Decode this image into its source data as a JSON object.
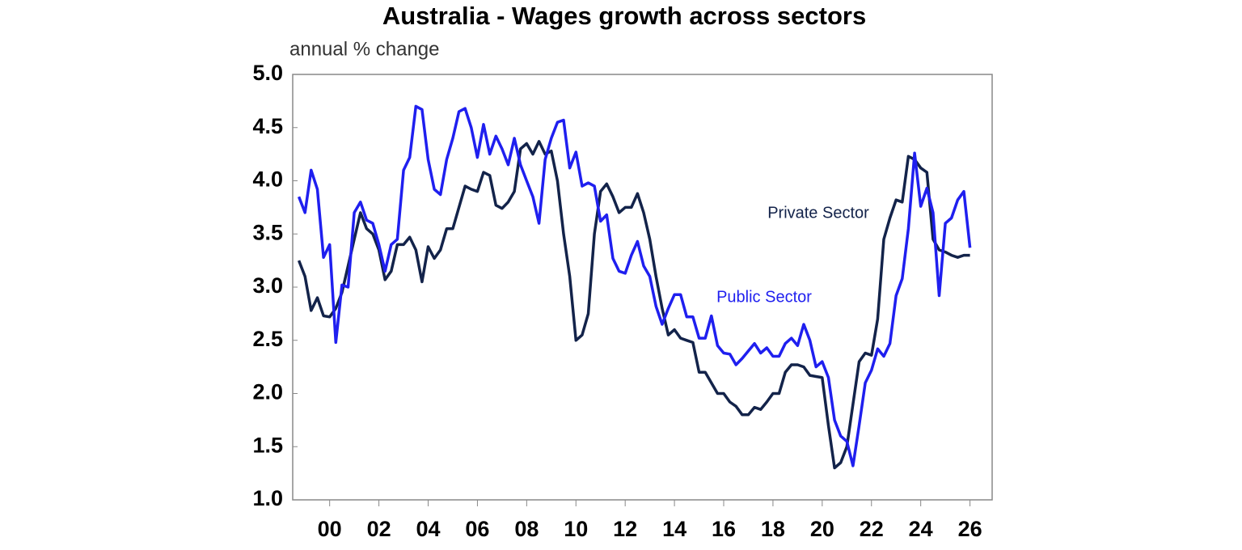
{
  "chart_data": {
    "type": "line",
    "title": "Australia - Wages growth across sectors",
    "subtitle": "annual % change",
    "x": [
      -1.25,
      -1,
      -0.75,
      -0.5,
      -0.25,
      0,
      0.25,
      0.5,
      0.75,
      1,
      1.25,
      1.5,
      1.75,
      2,
      2.25,
      2.5,
      2.75,
      3,
      3.25,
      3.5,
      3.75,
      4,
      4.25,
      4.5,
      4.75,
      5,
      5.25,
      5.5,
      5.75,
      6,
      6.25,
      6.5,
      6.75,
      7,
      7.25,
      7.5,
      7.75,
      8,
      8.25,
      8.5,
      8.75,
      9,
      9.25,
      9.5,
      9.75,
      10,
      10.25,
      10.5,
      10.75,
      11,
      11.25,
      11.5,
      11.75,
      12,
      12.25,
      12.5,
      12.75,
      13,
      13.25,
      13.5,
      13.75,
      14,
      14.25,
      14.5,
      14.75,
      15,
      15.25,
      15.5,
      15.75,
      16,
      16.25,
      16.5,
      16.75,
      17,
      17.25,
      17.5,
      17.75,
      18,
      18.25,
      18.5,
      18.75,
      19,
      19.25,
      19.5,
      19.75,
      20,
      20.25,
      20.5,
      20.75,
      21,
      21.25,
      21.5,
      21.75,
      22,
      22.25,
      22.5,
      22.75,
      23,
      23.25,
      23.5,
      23.75,
      24,
      24.25,
      24.5,
      24.75,
      25,
      25.25,
      25.5,
      25.75,
      26
    ],
    "series": [
      {
        "name": "Private Sector",
        "color": "#13234a",
        "values": [
          3.25,
          3.1,
          2.78,
          2.9,
          2.73,
          2.72,
          2.8,
          2.95,
          3.2,
          3.45,
          3.7,
          3.55,
          3.5,
          3.35,
          3.07,
          3.15,
          3.4,
          3.4,
          3.47,
          3.35,
          3.05,
          3.38,
          3.27,
          3.35,
          3.55,
          3.55,
          3.75,
          3.95,
          3.92,
          3.9,
          4.08,
          4.05,
          3.77,
          3.74,
          3.8,
          3.9,
          4.3,
          4.35,
          4.25,
          4.37,
          4.25,
          4.28,
          4.0,
          3.5,
          3.1,
          2.5,
          2.55,
          2.75,
          3.5,
          3.9,
          3.97,
          3.85,
          3.7,
          3.75,
          3.75,
          3.88,
          3.7,
          3.45,
          3.1,
          2.8,
          2.55,
          2.6,
          2.52,
          2.5,
          2.48,
          2.2,
          2.2,
          2.1,
          2.0,
          2.0,
          1.92,
          1.88,
          1.8,
          1.8,
          1.87,
          1.85,
          1.92,
          2.0,
          2.0,
          2.2,
          2.27,
          2.27,
          2.25,
          2.17,
          2.16,
          2.15,
          1.7,
          1.3,
          1.35,
          1.5,
          1.9,
          2.3,
          2.38,
          2.36,
          2.7,
          3.45,
          3.65,
          3.82,
          3.8,
          4.23,
          4.2,
          4.12,
          4.08,
          3.45,
          3.35,
          3.33,
          3.3,
          3.28,
          3.3,
          3.3
        ]
      },
      {
        "name": "Public Sector",
        "color": "#1f1fef",
        "values": [
          3.85,
          3.7,
          4.1,
          3.92,
          3.28,
          3.4,
          2.48,
          3.02,
          3.0,
          3.7,
          3.8,
          3.63,
          3.6,
          3.4,
          3.15,
          3.4,
          3.45,
          4.1,
          4.22,
          4.7,
          4.67,
          4.2,
          3.92,
          3.87,
          4.2,
          4.4,
          4.65,
          4.68,
          4.5,
          4.22,
          4.53,
          4.25,
          4.42,
          4.3,
          4.15,
          4.4,
          4.15,
          4.0,
          3.85,
          3.6,
          4.2,
          4.4,
          4.55,
          4.57,
          4.12,
          4.27,
          3.95,
          3.98,
          3.95,
          3.62,
          3.68,
          3.27,
          3.15,
          3.13,
          3.3,
          3.43,
          3.2,
          3.1,
          2.82,
          2.65,
          2.8,
          2.93,
          2.93,
          2.72,
          2.72,
          2.52,
          2.52,
          2.73,
          2.45,
          2.38,
          2.37,
          2.27,
          2.33,
          2.4,
          2.47,
          2.38,
          2.43,
          2.35,
          2.35,
          2.47,
          2.52,
          2.45,
          2.65,
          2.5,
          2.25,
          2.3,
          2.15,
          1.75,
          1.6,
          1.55,
          1.32,
          1.7,
          2.1,
          2.22,
          2.42,
          2.35,
          2.47,
          2.92,
          3.08,
          3.55,
          4.26,
          3.76,
          3.93,
          3.7,
          2.92,
          3.6,
          3.65,
          3.82,
          3.9,
          3.37
        ]
      }
    ],
    "xlim": [
      -1.5,
      26.9
    ],
    "xticks": [
      {
        "value": 0,
        "label": "00"
      },
      {
        "value": 2,
        "label": "02"
      },
      {
        "value": 4,
        "label": "04"
      },
      {
        "value": 6,
        "label": "06"
      },
      {
        "value": 8,
        "label": "08"
      },
      10,
      12,
      14,
      16,
      18,
      20,
      22,
      24,
      26
    ],
    "ylim": [
      1,
      5
    ],
    "yticks": [
      {
        "value": 1,
        "label": "1.0"
      },
      1.5,
      {
        "value": 2,
        "label": "2.0"
      },
      2.5,
      {
        "value": 3,
        "label": "3.0"
      },
      3.5,
      {
        "value": 4,
        "label": "4.0"
      },
      4.5,
      {
        "value": 5,
        "label": "5.0"
      }
    ],
    "grid": false
  }
}
